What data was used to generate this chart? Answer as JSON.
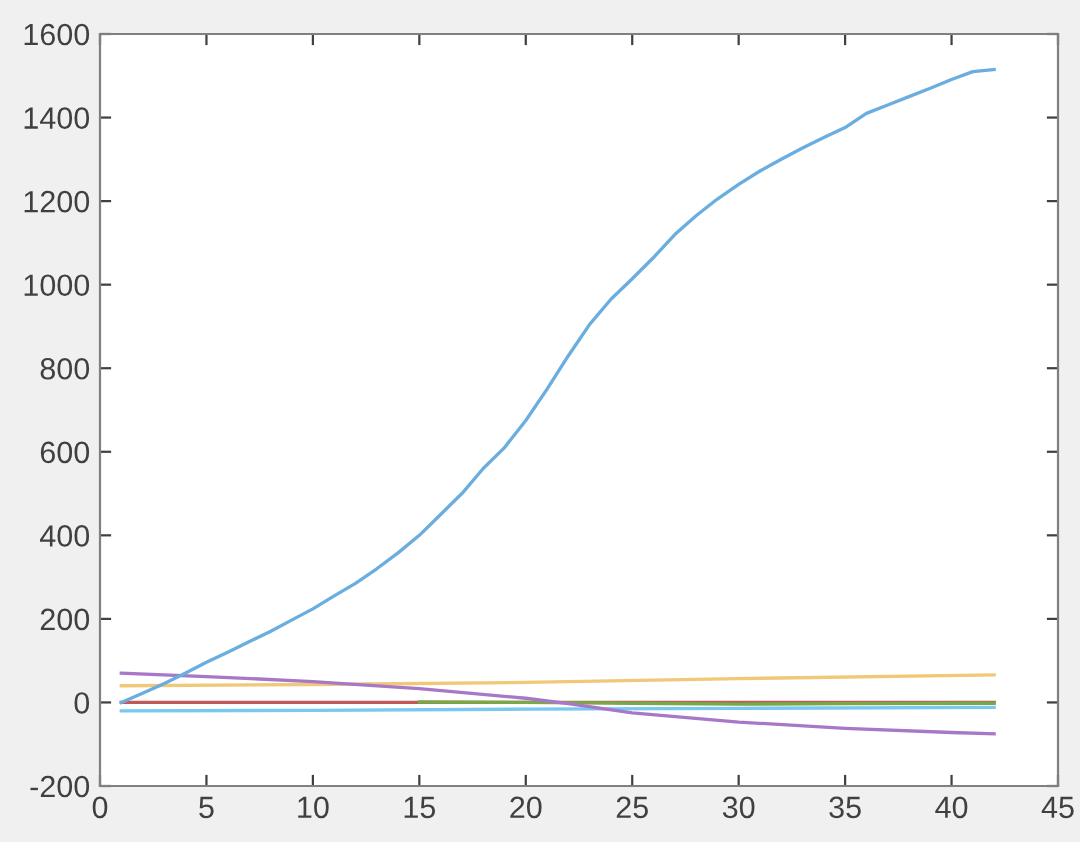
{
  "chart_data": {
    "type": "line",
    "xlim": [
      0,
      45
    ],
    "ylim": [
      -200,
      1600
    ],
    "xticks": [
      0,
      5,
      10,
      15,
      20,
      25,
      30,
      35,
      40,
      45
    ],
    "yticks": [
      -200,
      0,
      200,
      400,
      600,
      800,
      1000,
      1200,
      1400,
      1600
    ],
    "grid": false,
    "legend": false,
    "series": [
      {
        "color": "#c05858",
        "x": [
          1,
          10,
          20,
          30,
          42
        ],
        "values": [
          0,
          0,
          0,
          0,
          0
        ]
      },
      {
        "color": "#78a848",
        "x": [
          15,
          20,
          25,
          30,
          35,
          42
        ],
        "values": [
          1,
          0,
          -2,
          -4,
          -3,
          -2
        ]
      },
      {
        "color": "#78c8f0",
        "x": [
          1,
          10,
          20,
          30,
          42
        ],
        "values": [
          -20,
          -19,
          -16,
          -14,
          -12
        ]
      },
      {
        "color": "#f0c878",
        "x": [
          1,
          10,
          20,
          30,
          42
        ],
        "values": [
          40,
          43,
          48,
          57,
          66
        ]
      },
      {
        "color": "#a878c8",
        "x": [
          1,
          5,
          10,
          15,
          20,
          22,
          25,
          30,
          35,
          40,
          42
        ],
        "values": [
          70,
          62,
          50,
          33,
          10,
          -3,
          -25,
          -47,
          -62,
          -72,
          -75
        ]
      },
      {
        "color": "#6aaee0",
        "x": [
          1,
          2,
          3,
          4,
          5,
          6,
          7,
          8,
          9,
          10,
          11,
          12,
          13,
          14,
          15,
          16,
          17,
          18,
          19,
          20,
          21,
          22,
          23,
          24,
          25,
          26,
          27,
          28,
          29,
          30,
          31,
          32,
          33,
          34,
          35,
          36,
          37,
          38,
          39,
          40,
          41,
          42
        ],
        "values": [
          0,
          22,
          45,
          70,
          96,
          120,
          145,
          170,
          197,
          224,
          255,
          285,
          320,
          358,
          400,
          450,
          500,
          560,
          610,
          675,
          750,
          830,
          905,
          965,
          1014,
          1065,
          1120,
          1165,
          1205,
          1240,
          1272,
          1300,
          1327,
          1352,
          1376,
          1410,
          1430,
          1450,
          1470,
          1491,
          1510,
          1515
        ]
      }
    ]
  }
}
